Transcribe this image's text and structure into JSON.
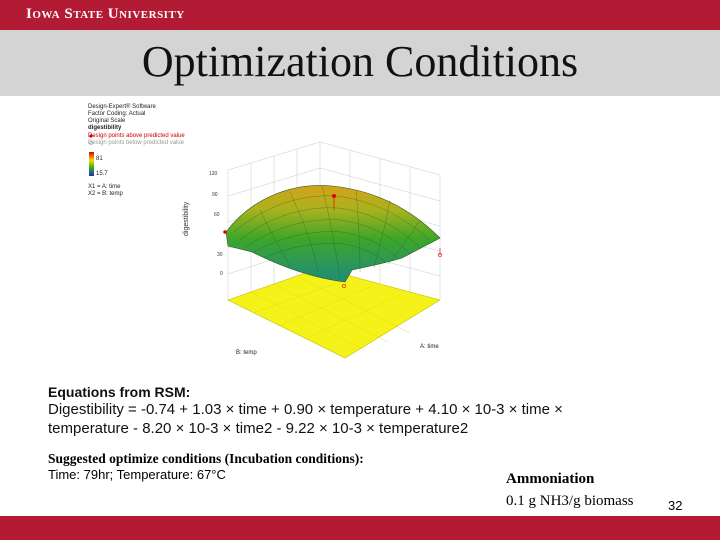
{
  "header": {
    "university": "Iowa State University",
    "title": "Optimization Conditions"
  },
  "plot": {
    "legend": {
      "software": "Design-Expert® Software",
      "factor_coding": "Factor Coding: Actual",
      "scale": "Original Scale",
      "response": "digestibility",
      "above": "Design points above predicted value",
      "below": "Design points below predicted value",
      "high": "81",
      "low": "15.7",
      "x1": "X1 = A: time",
      "x2": "X2 = B: temp"
    },
    "z_label": "digestibility",
    "z_ticks": [
      "120",
      "90",
      "60",
      "30",
      "0"
    ],
    "b_axis_label": "B: temp",
    "a_axis_label": "A: time",
    "colors": {
      "high": "#d90000",
      "low": "#1d2fbf",
      "floor": "#f5f21a"
    }
  },
  "equation": {
    "heading": "Equations from RSM:",
    "line1": "Digestibility = -0.74 + 1.03 × time + 0.90 × temperature + 4.10 × 10-3 × time ×",
    "line2": "temperature - 8.20 × 10-3 × time2 - 9.22 × 10-3 × temperature2"
  },
  "suggested": {
    "heading": "Suggested optimize conditions (Incubation conditions):",
    "values": "Time: 79hr; Temperature: 67°C"
  },
  "ammoniation": {
    "heading": "Ammoniation",
    "value": "0.1 g NH3/g biomass"
  },
  "page_number": "32",
  "brand_colors": {
    "primary": "#b31b34",
    "title_band": "#d4d4d4"
  }
}
